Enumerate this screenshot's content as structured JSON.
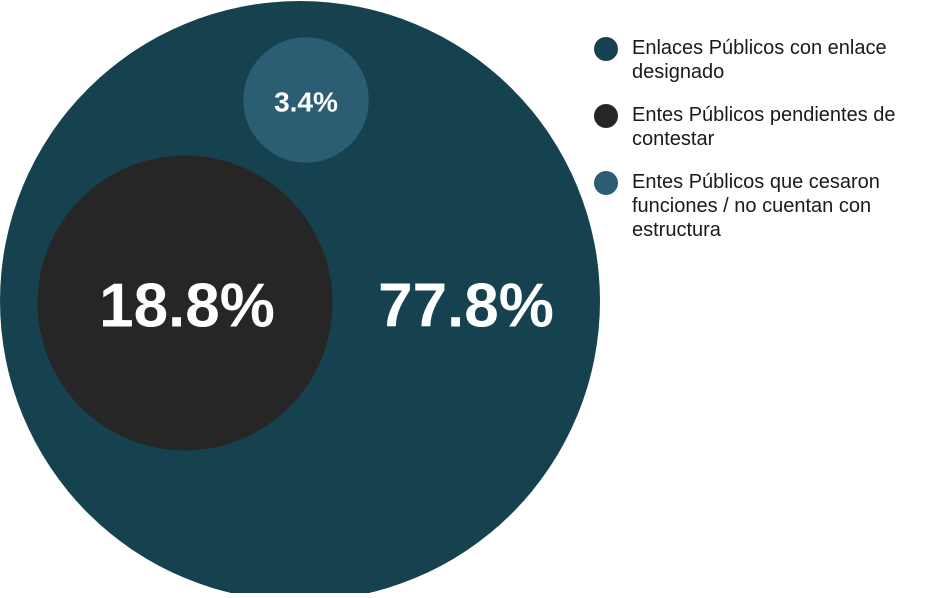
{
  "chart_data": {
    "type": "bubble",
    "title": "",
    "series": [
      {
        "name": "Enlaces Públicos con enlace designado",
        "value": 77.8,
        "label": "77.8%",
        "color": "#16424f"
      },
      {
        "name": "Entes Públicos pendientes de contestar",
        "value": 18.8,
        "label": "18.8%",
        "color": "#272627"
      },
      {
        "name": "Entes Públicos que cesaron funciones / no cuentan con estructura",
        "value": 3.4,
        "label": "3.4%",
        "color": "#2b5e73"
      }
    ],
    "legend_position": "right",
    "unit": "%"
  }
}
